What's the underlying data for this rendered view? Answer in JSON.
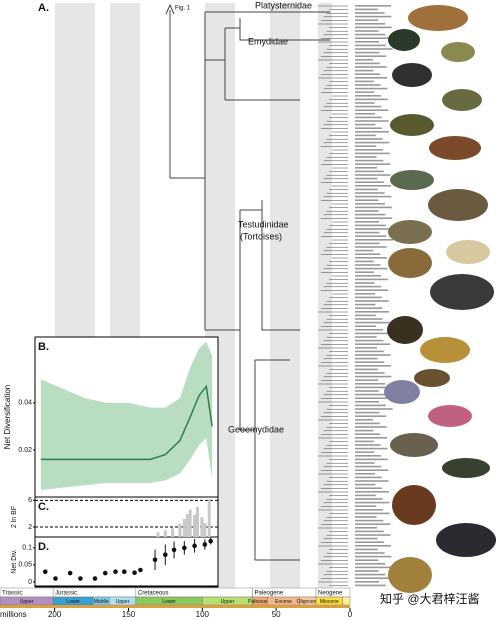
{
  "panel_a": {
    "label": "A.",
    "fig_label": "Fig. 1",
    "clades": [
      "Platysternidae",
      "Emydidae",
      "Testudinidae",
      "(Tortoises)",
      "Geoemydidae"
    ]
  },
  "chart_data": [
    {
      "type": "line",
      "label": "B.",
      "ylabel": "Net Diversification",
      "color": "#2e7d4f",
      "band_color": "#a8d5b0",
      "xlim": [
        214,
        89
      ],
      "ylim": [
        0,
        0.068
      ],
      "yticks": [
        0.02,
        0.04
      ],
      "x": [
        210,
        195,
        180,
        165,
        150,
        135,
        125,
        115,
        108,
        102,
        97,
        93
      ],
      "values": [
        0.016,
        0.016,
        0.016,
        0.016,
        0.016,
        0.016,
        0.018,
        0.024,
        0.034,
        0.043,
        0.047,
        0.03
      ],
      "upper": [
        0.05,
        0.046,
        0.042,
        0.04,
        0.04,
        0.038,
        0.038,
        0.042,
        0.055,
        0.063,
        0.066,
        0.06
      ],
      "lower": [
        0.003,
        0.004,
        0.005,
        0.006,
        0.006,
        0.006,
        0.007,
        0.01,
        0.016,
        0.022,
        0.025,
        0.008
      ]
    },
    {
      "type": "bar",
      "label": "C.",
      "ylabel": "2 ln BF",
      "color": "#c8c8c8",
      "xlim": [
        214,
        89
      ],
      "ylim": [
        0.5,
        6.5
      ],
      "yticks": [
        2,
        6
      ],
      "grid": "dashed",
      "x": [
        130,
        125,
        120,
        115,
        112,
        110,
        108,
        105,
        103,
        100,
        98,
        95
      ],
      "values": [
        1.2,
        1.5,
        1.8,
        2.5,
        3.2,
        4.0,
        4.6,
        3.8,
        5.0,
        3.5,
        2.6,
        6.2
      ]
    },
    {
      "type": "scatter",
      "label": "D.",
      "ylabel": "Net Div.",
      "color": "#111111",
      "xlim": [
        214,
        89
      ],
      "ylim": [
        -0.012,
        0.132
      ],
      "yticks": [
        0,
        0.05,
        0.1
      ],
      "x": [
        207,
        200,
        190,
        183,
        173,
        166,
        159,
        153,
        146,
        142,
        132,
        125,
        119,
        112,
        105,
        98,
        94
      ],
      "values": [
        0.03,
        0.01,
        0.026,
        0.01,
        0.01,
        0.026,
        0.03,
        0.03,
        0.027,
        0.035,
        0.065,
        0.08,
        0.094,
        0.1,
        0.106,
        0.11,
        0.12
      ],
      "errors": [
        null,
        null,
        null,
        null,
        null,
        null,
        null,
        null,
        null,
        null,
        0.03,
        0.03,
        0.025,
        0.02,
        0.02,
        0.015,
        0.01
      ]
    }
  ],
  "timescale": {
    "xlim": [
      237,
      0
    ],
    "ticks": [
      200,
      150,
      100,
      50,
      0
    ],
    "unit": "millions",
    "periods": [
      {
        "name": "Triassic",
        "start": 237,
        "end": 201,
        "color": "#b38fc0"
      },
      {
        "name": "Jurassic",
        "start": 201,
        "end": 145,
        "color": "#5ab0d8"
      },
      {
        "name": "Cretaceous",
        "start": 145,
        "end": 66,
        "color": "#7fc35f"
      },
      {
        "name": "Paleogene",
        "start": 66,
        "end": 23,
        "color": "#f0a070"
      },
      {
        "name": "Neogene",
        "start": 23,
        "end": 0,
        "color": "#f5d23a"
      }
    ],
    "epochs": [
      {
        "name": "Upper",
        "start": 237,
        "end": 201,
        "color": "#b38fc0"
      },
      {
        "name": "Lower",
        "start": 201,
        "end": 174,
        "color": "#3aa0d0"
      },
      {
        "name": "Middle",
        "start": 174,
        "end": 163,
        "color": "#80c8e8"
      },
      {
        "name": "Upper",
        "start": 163,
        "end": 145,
        "color": "#b0e0f0"
      },
      {
        "name": "Lower",
        "start": 145,
        "end": 100,
        "color": "#8cc860"
      },
      {
        "name": "Upper",
        "start": 100,
        "end": 66,
        "color": "#b8e070"
      },
      {
        "name": "Paleocene",
        "start": 66,
        "end": 56,
        "color": "#f0a870"
      },
      {
        "name": "Eocene",
        "start": 56,
        "end": 34,
        "color": "#f4b888"
      },
      {
        "name": "Oligocene",
        "start": 34,
        "end": 23,
        "color": "#f8c8a0"
      },
      {
        "name": "Miocene",
        "start": 23,
        "end": 5,
        "color": "#f8e040"
      },
      {
        "name": "",
        "start": 5,
        "end": 0,
        "color": "#fff0a0"
      }
    ]
  },
  "watermark": "知乎 @大君梓汪酱"
}
